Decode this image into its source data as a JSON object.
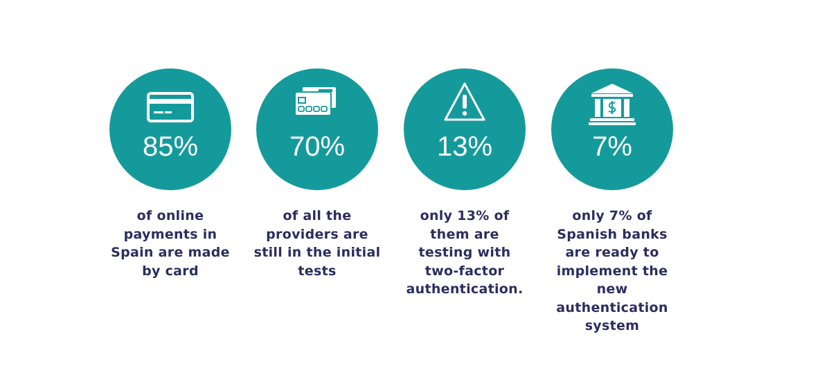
{
  "stats": [
    {
      "value": "85%",
      "lines": [
        "of online",
        "payments in",
        "Spain are made",
        "by card"
      ]
    },
    {
      "value": "70%",
      "lines": [
        "of all the",
        "providers are",
        "still in the initial",
        "tests"
      ]
    },
    {
      "value": "13%",
      "lines": [
        "only 13% of",
        "them are",
        "testing with",
        "two-factor",
        "authentication."
      ]
    },
    {
      "value": "7%",
      "lines": [
        "only 7% of",
        "Spanish banks",
        "are ready to",
        "implement the",
        "new",
        "authentication",
        "system"
      ]
    }
  ]
}
